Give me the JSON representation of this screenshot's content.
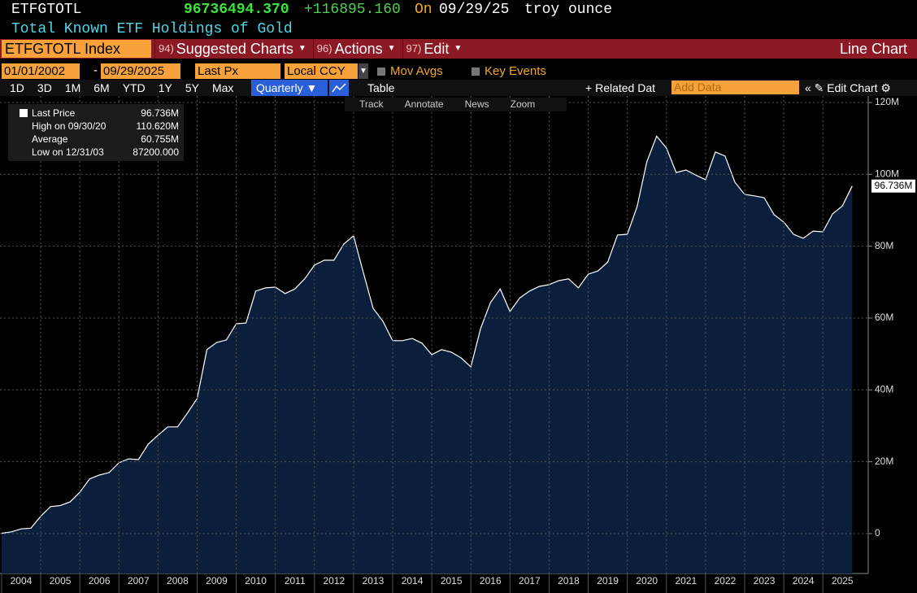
{
  "header": {
    "ticker": "ETFGTOTL",
    "price": "96736494.370",
    "change": "+116895.160",
    "on": "On",
    "date": "09/29/25",
    "unit": "troy ounce",
    "description": "Total Known ETF Holdings of Gold"
  },
  "menu": {
    "security": "ETFGTOTL Index",
    "items": [
      {
        "num": "94)",
        "label": "Suggested Charts"
      },
      {
        "num": "96)",
        "label": "Actions"
      },
      {
        "num": "97)",
        "label": "Edit"
      }
    ],
    "chart_type": "Line Chart"
  },
  "controls": {
    "start_date": "01/01/2002",
    "end_date": "09/29/2025",
    "field": "Last Px",
    "currency": "Local CCY",
    "checkboxes": [
      "Mov Avgs",
      "Key Events"
    ],
    "ranges": [
      "1D",
      "3D",
      "1M",
      "6M",
      "YTD",
      "1Y",
      "5Y",
      "Max"
    ],
    "frequency": "Quarterly",
    "table": "Table",
    "related": "Related Dat",
    "add_data": "Add Data",
    "edit_chart": "Edit Chart"
  },
  "tools": [
    "Track",
    "Annotate",
    "News",
    "Zoom"
  ],
  "legend": [
    {
      "label": "Last Price",
      "value": "96.736M"
    },
    {
      "label": "High on 09/30/20",
      "value": "110.620M"
    },
    {
      "label": "Average",
      "value": "60.755M"
    },
    {
      "label": "Low on 12/31/03",
      "value": "87200.000"
    }
  ],
  "chart_data": {
    "type": "area",
    "color": "#0b1f3d",
    "line_color": "#ffffff",
    "grid": true,
    "last_label": "96.736M",
    "x": [
      2004,
      2004.25,
      2004.5,
      2004.75,
      2005,
      2005.25,
      2005.5,
      2005.75,
      2006,
      2006.25,
      2006.5,
      2006.75,
      2007,
      2007.25,
      2007.5,
      2007.75,
      2008,
      2008.25,
      2008.5,
      2008.75,
      2009,
      2009.25,
      2009.5,
      2009.75,
      2010,
      2010.25,
      2010.5,
      2010.75,
      2011,
      2011.25,
      2011.5,
      2011.75,
      2012,
      2012.25,
      2012.5,
      2012.75,
      2013,
      2013.25,
      2013.5,
      2013.75,
      2014,
      2014.25,
      2014.5,
      2014.75,
      2015,
      2015.25,
      2015.5,
      2015.75,
      2016,
      2016.25,
      2016.5,
      2016.75,
      2017,
      2017.25,
      2017.5,
      2017.75,
      2018,
      2018.25,
      2018.5,
      2018.75,
      2019,
      2019.25,
      2019.5,
      2019.75,
      2020,
      2020.25,
      2020.5,
      2020.75,
      2021,
      2021.25,
      2021.5,
      2021.75,
      2022,
      2022.25,
      2022.5,
      2022.75,
      2023,
      2023.25,
      2023.5,
      2023.75,
      2024,
      2024.25,
      2024.5,
      2024.75,
      2025,
      2025.25,
      2025.5,
      2025.75
    ],
    "values": [
      87200,
      500000,
      1300000,
      1500000,
      4800000,
      7500000,
      7800000,
      8800000,
      11500000,
      15200000,
      16300000,
      17000000,
      19700000,
      20800000,
      20600000,
      24900000,
      27400000,
      29700000,
      29700000,
      33500000,
      37600000,
      51200000,
      53200000,
      53900000,
      58400000,
      58600000,
      67500000,
      68400000,
      68600000,
      66800000,
      68100000,
      70900000,
      74700000,
      76100000,
      76100000,
      80600000,
      82900000,
      72700000,
      62700000,
      59100000,
      53700000,
      53700000,
      54300000,
      53000000,
      49800000,
      51200000,
      50500000,
      48900000,
      46400000,
      57100000,
      64300000,
      68100000,
      61800000,
      65600000,
      67500000,
      68800000,
      69300000,
      70400000,
      70900000,
      68400000,
      72200000,
      73100000,
      75600000,
      83100000,
      83300000,
      91000000,
      103500000,
      110620000,
      107300000,
      100500000,
      101200000,
      99800000,
      98500000,
      106200000,
      105100000,
      97800000,
      94400000,
      94000000,
      93500000,
      88800000,
      86700000,
      83300000,
      82200000,
      84200000,
      84000000,
      89000000,
      91200000,
      96736000
    ],
    "xlim": [
      2003.96,
      2026.16
    ],
    "xticks": [
      {
        "value": 2004.5,
        "label": "2004"
      },
      {
        "value": 2005.5,
        "label": "2005"
      },
      {
        "value": 2006.5,
        "label": "2006"
      },
      {
        "value": 2007.5,
        "label": "2007"
      },
      {
        "value": 2008.5,
        "label": "2008"
      },
      {
        "value": 2009.5,
        "label": "2009"
      },
      {
        "value": 2010.5,
        "label": "2010"
      },
      {
        "value": 2011.5,
        "label": "2011"
      },
      {
        "value": 2012.5,
        "label": "2012"
      },
      {
        "value": 2013.5,
        "label": "2013"
      },
      {
        "value": 2014.5,
        "label": "2014"
      },
      {
        "value": 2015.5,
        "label": "2015"
      },
      {
        "value": 2016.5,
        "label": "2016"
      },
      {
        "value": 2017.5,
        "label": "2017"
      },
      {
        "value": 2018.5,
        "label": "2018"
      },
      {
        "value": 2019.5,
        "label": "2019"
      },
      {
        "value": 2020.5,
        "label": "2020"
      },
      {
        "value": 2021.5,
        "label": "2021"
      },
      {
        "value": 2022.5,
        "label": "2022"
      },
      {
        "value": 2023.5,
        "label": "2023"
      },
      {
        "value": 2024.5,
        "label": "2024"
      },
      {
        "value": 2025.5,
        "label": "2025"
      }
    ],
    "ylim": [
      -11100000,
      121800000
    ],
    "yticks": [
      0,
      {
        "value": 20000000,
        "label": "20M"
      },
      {
        "value": 40000000,
        "label": "40M"
      },
      {
        "value": 60000000,
        "label": "60M"
      },
      {
        "value": 80000000,
        "label": "80M"
      },
      {
        "value": 100000000,
        "label": "100M"
      },
      {
        "value": 120000000,
        "label": "120M"
      }
    ]
  }
}
